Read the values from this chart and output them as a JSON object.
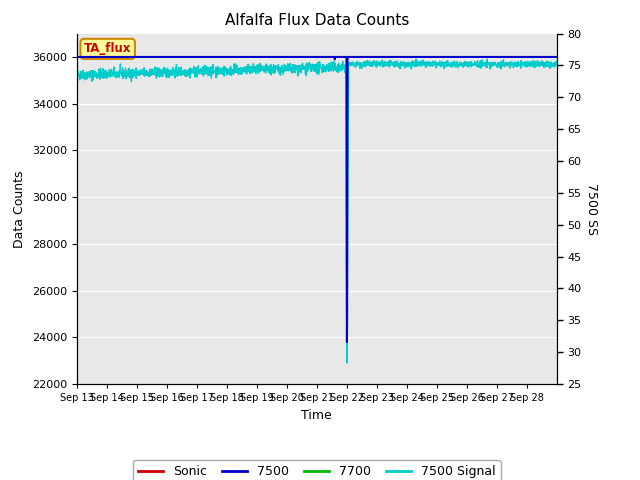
{
  "title": "Alfalfa Flux Data Counts",
  "xlabel": "Time",
  "ylabel": "Data Counts",
  "ylabel_right": "7500 SS",
  "ylim": [
    22000,
    37000
  ],
  "ylim_right": [
    25,
    80
  ],
  "yticks_left": [
    22000,
    24000,
    26000,
    28000,
    30000,
    32000,
    34000,
    36000
  ],
  "yticks_right": [
    25,
    30,
    35,
    40,
    45,
    50,
    55,
    60,
    65,
    70,
    75,
    80
  ],
  "xtick_labels": [
    "Sep 13",
    "Sep 14",
    "Sep 15",
    "Sep 16",
    "Sep 17",
    "Sep 18",
    "Sep 19",
    "Sep 20",
    "Sep 21",
    "Sep 22",
    "Sep 23",
    "Sep 24",
    "Sep 25",
    "Sep 26",
    "Sep 27",
    "Sep 28"
  ],
  "bg_color": "#e8e8e8",
  "line_7700_color": "#00bb00",
  "line_7500_color": "#0000cc",
  "line_sonic_color": "#cc0000",
  "line_7500signal_color": "#00cccc",
  "legend_box_facecolor": "#ffff99",
  "legend_box_edgecolor": "#cc8800",
  "legend_box_text": "TA_flux",
  "legend_text_color": "#cc0000",
  "drop_day": 9.0,
  "small_spike_day": 8.6,
  "signal_base_before": 73.5,
  "signal_base_after": 75.2,
  "signal_noise_before": 0.4,
  "signal_noise_after": 0.25
}
